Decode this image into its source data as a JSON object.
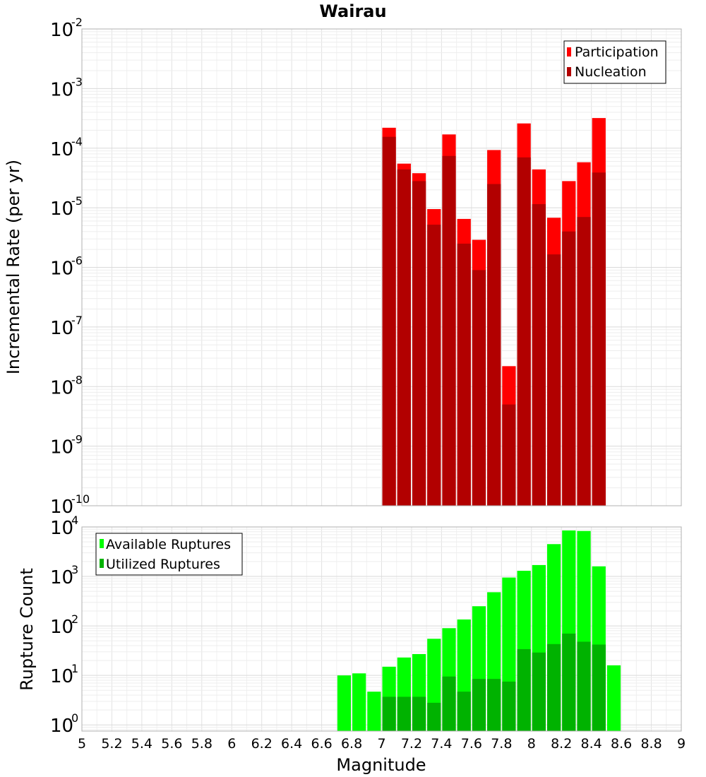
{
  "chart_data": [
    {
      "type": "bar",
      "title": "Wairau",
      "xlabel": "",
      "ylabel": "Incremental Rate (per yr)",
      "yscale": "log",
      "ylim": [
        1e-10,
        0.01
      ],
      "ytick_exponents": [
        "-10",
        "-9",
        "-8",
        "-7",
        "-6",
        "-5",
        "-4",
        "-3",
        "-2"
      ],
      "ytick_base": "10",
      "xlim": [
        5,
        9
      ],
      "legend_position": "top-right",
      "bar_width": 0.1,
      "x": [
        7.05,
        7.15,
        7.25,
        7.35,
        7.45,
        7.55,
        7.65,
        7.75,
        7.85,
        7.95,
        8.05,
        8.15,
        8.25,
        8.35,
        8.45
      ],
      "series": [
        {
          "name": "Participation",
          "color": "#ff0000",
          "values": [
            0.00022,
            5.5e-05,
            3.8e-05,
            9.5e-06,
            0.00017,
            6.5e-06,
            2.9e-06,
            9.3e-05,
            2.2e-08,
            0.00026,
            4.4e-05,
            6.8e-06,
            2.8e-05,
            5.8e-05,
            0.00032
          ]
        },
        {
          "name": "Nucleation",
          "color": "#b20000",
          "values": [
            0.000155,
            4.4e-05,
            2.8e-05,
            5.2e-06,
            7.4e-05,
            2.5e-06,
            9e-07,
            2.5e-05,
            5e-09,
            7e-05,
            1.15e-05,
            1.65e-06,
            4e-06,
            7e-06,
            3.9e-05
          ]
        }
      ]
    },
    {
      "type": "bar",
      "title": "",
      "xlabel": "Magnitude",
      "ylabel": "Rupture Count",
      "yscale": "log",
      "ylim": [
        0.75,
        10000
      ],
      "ytick_exponents": [
        "0",
        "1",
        "2",
        "3",
        "4"
      ],
      "ytick_base": "10",
      "xlim": [
        5,
        9
      ],
      "xticks": [
        "5",
        "5.2",
        "5.4",
        "5.6",
        "5.8",
        "6",
        "6.2",
        "6.4",
        "6.6",
        "6.8",
        "7",
        "7.2",
        "7.4",
        "7.6",
        "7.8",
        "8",
        "8.2",
        "8.4",
        "8.6",
        "8.8",
        "9"
      ],
      "legend_position": "top-left",
      "bar_width": 0.1,
      "x": [
        6.75,
        6.85,
        6.95,
        7.05,
        7.15,
        7.25,
        7.35,
        7.45,
        7.55,
        7.65,
        7.75,
        7.85,
        7.95,
        8.05,
        8.15,
        8.25,
        8.35,
        8.45,
        8.55
      ],
      "series": [
        {
          "name": "Available Ruptures",
          "color": "#00ff00",
          "values": [
            10,
            11,
            4.7,
            15,
            23,
            27,
            55,
            90,
            135,
            250,
            480,
            950,
            1300,
            1700,
            4500,
            8500,
            8300,
            1600,
            16
          ]
        },
        {
          "name": "Utilized Ruptures",
          "color": "#00b200",
          "values": [
            0,
            0,
            0,
            3.7,
            3.7,
            3.7,
            2.8,
            9.5,
            4.7,
            8.5,
            8.5,
            7.5,
            34,
            29,
            43,
            70,
            48,
            42,
            0
          ]
        }
      ]
    }
  ]
}
